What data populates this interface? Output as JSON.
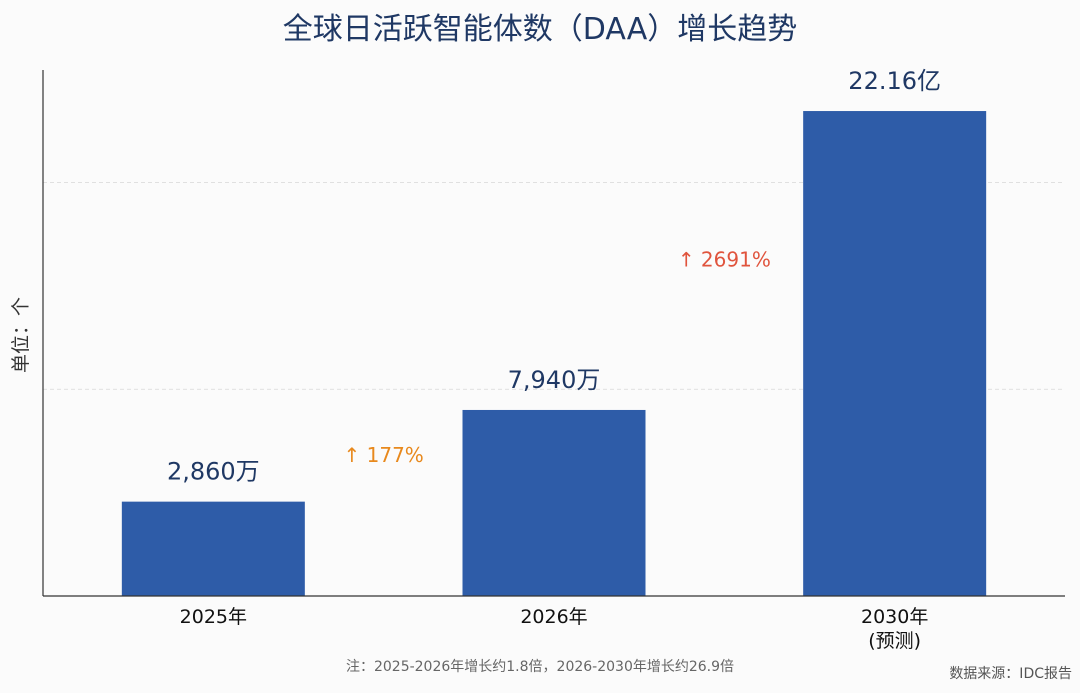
{
  "chart_data": {
    "type": "bar",
    "title": "全球日活跃智能体数（DAA）增长趋势",
    "ylabel": "单位：个",
    "xlabel": "",
    "categories": [
      [
        "2025年"
      ],
      [
        "2026年"
      ],
      [
        "2030年",
        "(预测)"
      ]
    ],
    "values": [
      28600000,
      79400000,
      2216000000
    ],
    "value_labels": [
      "2,860万",
      "7,940万",
      "22.16亿"
    ],
    "scale": "log",
    "ylim": [
      10000000,
      3500000000
    ],
    "grid": true,
    "growth_annotations": [
      {
        "text": "↑ 177%",
        "color": "#e8891d",
        "between": [
          0,
          1
        ]
      },
      {
        "text": "↑ 2691%",
        "color": "#e0543d",
        "between": [
          1,
          2
        ]
      }
    ],
    "bar_color": "#2e5ca8",
    "footnote": "注：2025-2026年增长约1.8倍，2026-2030年增长约26.9倍",
    "source": "数据来源：IDC报告"
  }
}
